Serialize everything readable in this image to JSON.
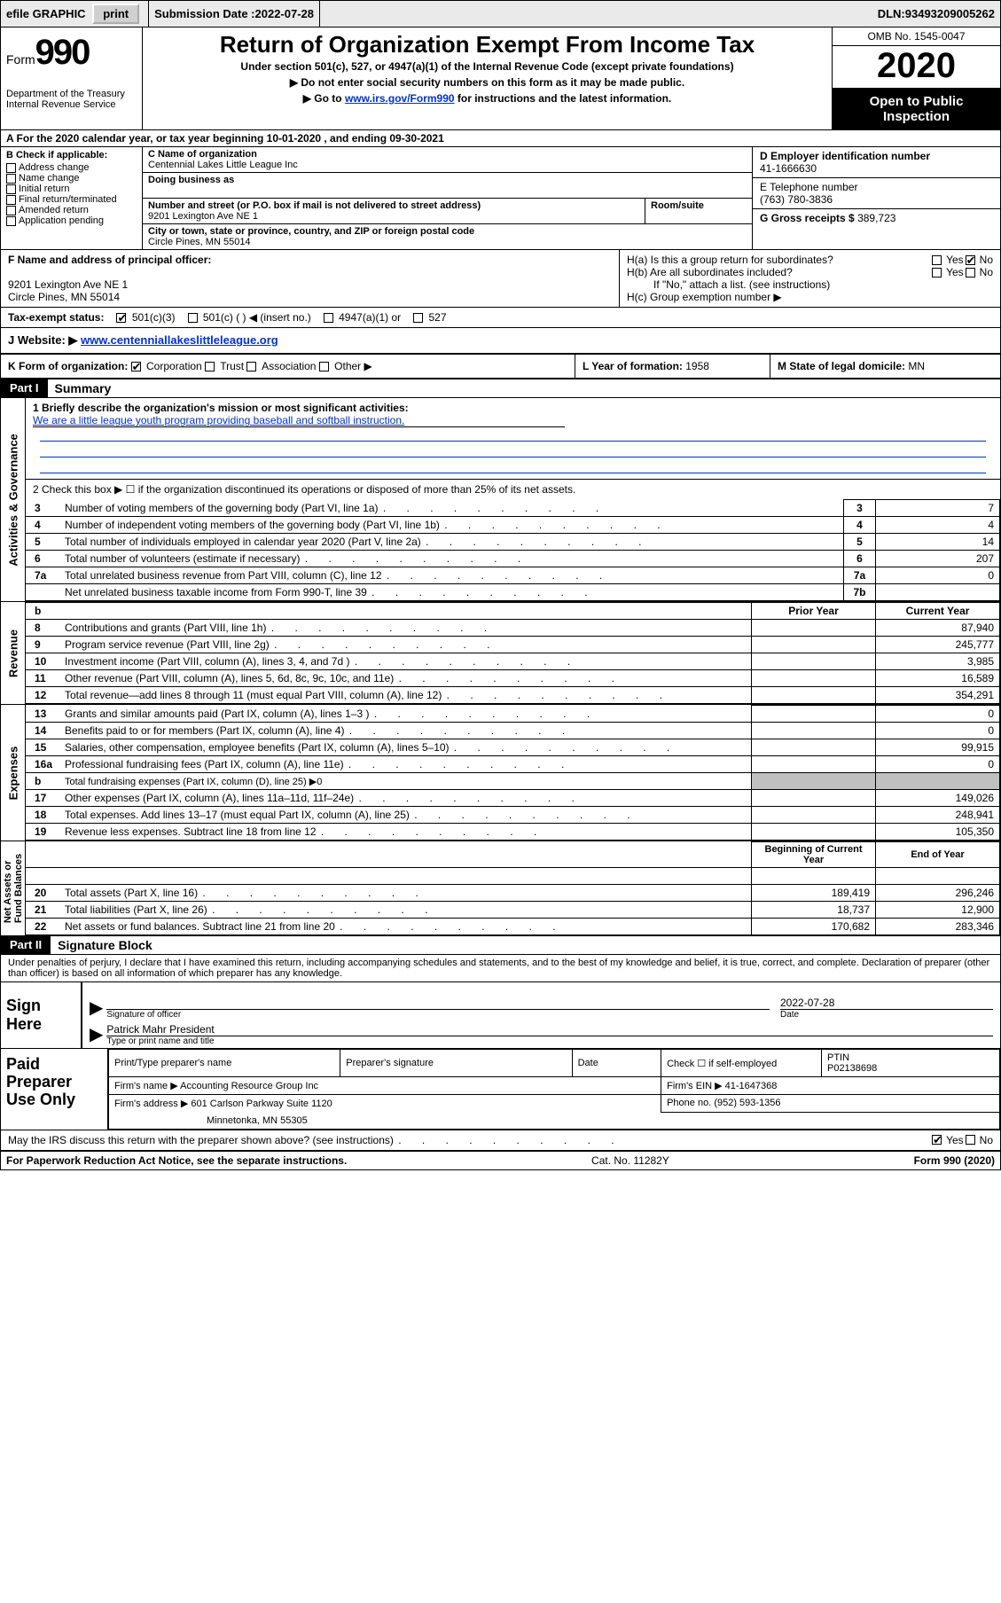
{
  "topbar": {
    "efile": "efile GRAPHIC",
    "print": "print",
    "submission_label": "Submission Date : ",
    "submission_date": "2022-07-28",
    "dln_label": "DLN: ",
    "dln": "93493209005262"
  },
  "header": {
    "form_word": "Form",
    "form_num": "990",
    "dept": "Department of the Treasury\nInternal Revenue Service",
    "title": "Return of Organization Exempt From Income Tax",
    "subtitle": "Under section 501(c), 527, or 4947(a)(1) of the Internal Revenue Code (except private foundations)",
    "instr1": "▶ Do not enter social security numbers on this form as it may be made public.",
    "instr2_pre": "▶ Go to ",
    "instr2_link": "www.irs.gov/Form990",
    "instr2_post": " for instructions and the latest information.",
    "omb": "OMB No. 1545-0047",
    "year": "2020",
    "open": "Open to Public Inspection"
  },
  "rowA": "A   For the 2020 calendar year, or tax year beginning 10-01-2020    , and ending 09-30-2021",
  "boxB": {
    "hdr": "B Check if applicable:",
    "items": [
      "Address change",
      "Name change",
      "Initial return",
      "Final return/terminated",
      "Amended return",
      "Application pending"
    ]
  },
  "boxC": {
    "name_lbl": "C Name of organization",
    "name": "Centennial Lakes Little League Inc",
    "dba_lbl": "Doing business as",
    "addr_lbl": "Number and street (or P.O. box if mail is not delivered to street address)",
    "room_lbl": "Room/suite",
    "addr": "9201 Lexington Ave NE 1",
    "city_lbl": "City or town, state or province, country, and ZIP or foreign postal code",
    "city": "Circle Pines, MN  55014"
  },
  "boxD": {
    "ein_lbl": "D Employer identification number",
    "ein": "41-1666630",
    "tel_lbl": "E Telephone number",
    "tel": "(763) 780-3836",
    "gross_lbl": "G Gross receipts $ ",
    "gross": "389,723"
  },
  "rowF": {
    "lbl": "F  Name and address of principal officer:",
    "addr1": "9201 Lexington Ave NE 1",
    "addr2": "Circle Pines, MN  55014"
  },
  "rowH": {
    "ha": "H(a)  Is this a group return for subordinates?",
    "hb": "H(b)  Are all subordinates included?",
    "hnote": "If \"No,\" attach a list. (see instructions)",
    "hc": "H(c)  Group exemption number ▶"
  },
  "rowI": {
    "lbl": "Tax-exempt status:",
    "opt1": "501(c)(3)",
    "opt2": "501(c) (   ) ◀ (insert no.)",
    "opt3": "4947(a)(1) or",
    "opt4": "527"
  },
  "rowJ": {
    "lbl": "J   Website: ▶  ",
    "url": "www.centenniallakeslittleleague.org"
  },
  "rowK": {
    "k": "K Form of organization:",
    "k1": "Corporation",
    "k2": "Trust",
    "k3": "Association",
    "k4": "Other ▶",
    "l_lbl": "L Year of formation: ",
    "l_val": "1958",
    "m_lbl": "M State of legal domicile: ",
    "m_val": "MN"
  },
  "part1": {
    "hdr": "Part I",
    "title": "Summary",
    "q1": "1  Briefly describe the organization's mission or most significant activities:",
    "mission": "We are a little league youth program providing baseball and softball instruction.",
    "q2": "2    Check this box ▶ ☐  if the organization discontinued its operations or disposed of more than 25% of its net assets."
  },
  "ag_rows": [
    {
      "n": "3",
      "d": "Number of voting members of the governing body (Part VI, line 1a)",
      "box": "3",
      "v": "7"
    },
    {
      "n": "4",
      "d": "Number of independent voting members of the governing body (Part VI, line 1b)",
      "box": "4",
      "v": "4"
    },
    {
      "n": "5",
      "d": "Total number of individuals employed in calendar year 2020 (Part V, line 2a)",
      "box": "5",
      "v": "14"
    },
    {
      "n": "6",
      "d": "Total number of volunteers (estimate if necessary)",
      "box": "6",
      "v": "207"
    },
    {
      "n": "7a",
      "d": "Total unrelated business revenue from Part VIII, column (C), line 12",
      "box": "7a",
      "v": "0"
    },
    {
      "n": "",
      "d": "Net unrelated business taxable income from Form 990-T, line 39",
      "box": "7b",
      "v": ""
    }
  ],
  "col_hdrs": {
    "b": "b",
    "prior": "Prior Year",
    "current": "Current Year"
  },
  "revenue": [
    {
      "n": "8",
      "d": "Contributions and grants (Part VIII, line 1h)",
      "p": "",
      "c": "87,940"
    },
    {
      "n": "9",
      "d": "Program service revenue (Part VIII, line 2g)",
      "p": "",
      "c": "245,777"
    },
    {
      "n": "10",
      "d": "Investment income (Part VIII, column (A), lines 3, 4, and 7d )",
      "p": "",
      "c": "3,985"
    },
    {
      "n": "11",
      "d": "Other revenue (Part VIII, column (A), lines 5, 6d, 8c, 9c, 10c, and 11e)",
      "p": "",
      "c": "16,589"
    },
    {
      "n": "12",
      "d": "Total revenue—add lines 8 through 11 (must equal Part VIII, column (A), line 12)",
      "p": "",
      "c": "354,291"
    }
  ],
  "expenses": [
    {
      "n": "13",
      "d": "Grants and similar amounts paid (Part IX, column (A), lines 1–3 )",
      "p": "",
      "c": "0"
    },
    {
      "n": "14",
      "d": "Benefits paid to or for members (Part IX, column (A), line 4)",
      "p": "",
      "c": "0"
    },
    {
      "n": "15",
      "d": "Salaries, other compensation, employee benefits (Part IX, column (A), lines 5–10)",
      "p": "",
      "c": "99,915"
    },
    {
      "n": "16a",
      "d": "Professional fundraising fees (Part IX, column (A), line 11e)",
      "p": "",
      "c": "0"
    },
    {
      "n": "b",
      "d": "Total fundraising expenses (Part IX, column (D), line 25)  ▶0",
      "p": "shade",
      "c": "shade",
      "small": true
    },
    {
      "n": "17",
      "d": "Other expenses (Part IX, column (A), lines 11a–11d, 11f–24e)",
      "p": "",
      "c": "149,026"
    },
    {
      "n": "18",
      "d": "Total expenses. Add lines 13–17 (must equal Part IX, column (A), line 25)",
      "p": "",
      "c": "248,941"
    },
    {
      "n": "19",
      "d": "Revenue less expenses. Subtract line 18 from line 12",
      "p": "",
      "c": "105,350"
    }
  ],
  "na_hdrs": {
    "begin": "Beginning of Current Year",
    "end": "End of Year"
  },
  "netassets": [
    {
      "n": "20",
      "d": "Total assets (Part X, line 16)",
      "p": "189,419",
      "c": "296,246"
    },
    {
      "n": "21",
      "d": "Total liabilities (Part X, line 26)",
      "p": "18,737",
      "c": "12,900"
    },
    {
      "n": "22",
      "d": "Net assets or fund balances. Subtract line 21 from line 20",
      "p": "170,682",
      "c": "283,346"
    }
  ],
  "part2": {
    "hdr": "Part II",
    "title": "Signature Block"
  },
  "declare": "Under penalties of perjury, I declare that I have examined this return, including accompanying schedules and statements, and to the best of my knowledge and belief, it is true, correct, and complete. Declaration of preparer (other than officer) is based on all information of which preparer has any knowledge.",
  "sign": {
    "label": "Sign Here",
    "sig_cap": "Signature of officer",
    "date_val": "2022-07-28",
    "date_cap": "Date",
    "name": "Patrick Mahr  President",
    "name_cap": "Type or print name and title"
  },
  "prep": {
    "label": "Paid Preparer Use Only",
    "h1": "Print/Type preparer's name",
    "h2": "Preparer's signature",
    "h3": "Date",
    "h4_pre": "Check ☐ if self-employed",
    "h5": "PTIN",
    "ptin": "P02138698",
    "firm_lbl": "Firm's name    ▶ ",
    "firm": "Accounting Resource Group Inc",
    "ein_lbl": "Firm's EIN ▶ ",
    "ein": "41-1647368",
    "addr_lbl": "Firm's address ▶ ",
    "addr1": "601 Carlson Parkway Suite 1120",
    "addr2": "Minnetonka, MN  55305",
    "phone_lbl": "Phone no. ",
    "phone": "(952) 593-1356"
  },
  "may_irs": "May the IRS discuss this return with the preparer shown above? (see instructions)",
  "footer": {
    "left": "For Paperwork Reduction Act Notice, see the separate instructions.",
    "mid": "Cat. No. 11282Y",
    "right": "Form 990 (2020)"
  },
  "yes": "Yes",
  "no": "No"
}
